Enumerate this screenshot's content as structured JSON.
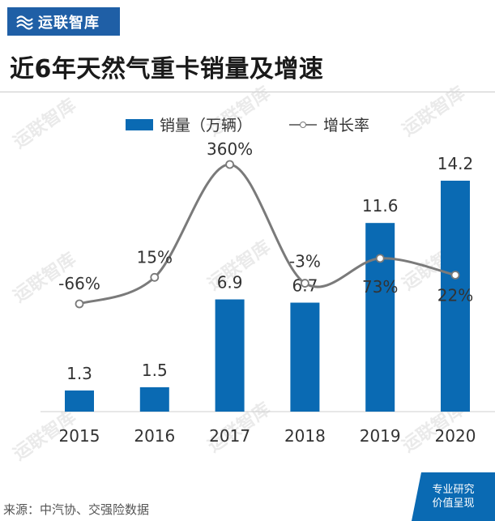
{
  "brand": {
    "name": "运联智库"
  },
  "title": "近6年天然气重卡销量及增速",
  "legend": {
    "bar": "销量（万辆）",
    "line": "增长率"
  },
  "source": "来源：中汽协、交强险数据",
  "corner": {
    "line1": "专业研究",
    "line2": "价值呈现"
  },
  "watermark": "运联智库",
  "colors": {
    "bar": "#0a6ab3",
    "line": "#7a7a7a",
    "brand": "#1f5fa6"
  },
  "chart_data": {
    "type": "bar",
    "title": "近6年天然气重卡销量及增速",
    "categories": [
      "2015",
      "2016",
      "2017",
      "2018",
      "2019",
      "2020"
    ],
    "series": [
      {
        "name": "销量（万辆）",
        "type": "bar",
        "values": [
          1.3,
          1.5,
          6.9,
          6.7,
          11.6,
          14.2
        ],
        "labels": [
          "1.3",
          "1.5",
          "6.9",
          "6.7",
          "11.6",
          "14.2"
        ]
      },
      {
        "name": "增长率",
        "type": "line",
        "values": [
          -66,
          15,
          360,
          -3,
          73,
          22
        ],
        "labels": [
          "-66%",
          "15%",
          "360%",
          "-3%",
          "73%",
          "22%"
        ]
      }
    ],
    "ylim": [
      0,
      14.2
    ],
    "legend_position": "top",
    "grid": false
  }
}
